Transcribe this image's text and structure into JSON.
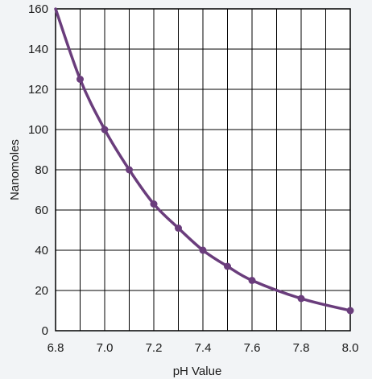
{
  "chart_data": {
    "type": "line",
    "xlabel": "pH Value",
    "ylabel": "Nanomoles",
    "xlim": [
      6.8,
      8.0
    ],
    "ylim": [
      0,
      160
    ],
    "x_ticks": [
      "6.8",
      "7.0",
      "7.2",
      "7.4",
      "7.6",
      "7.8",
      "8.0"
    ],
    "y_ticks": [
      "0",
      "20",
      "40",
      "60",
      "80",
      "100",
      "120",
      "140",
      "160"
    ],
    "grid": true,
    "line_color": "#6a3d7c",
    "series": [
      {
        "x": [
          6.8,
          6.9,
          7.0,
          7.1,
          7.2,
          7.3,
          7.4,
          7.5,
          7.6,
          7.8,
          8.0
        ],
        "y": [
          160,
          125,
          100,
          80,
          63,
          51,
          40,
          32,
          25,
          16,
          10
        ],
        "markers": [
          false,
          true,
          true,
          true,
          true,
          true,
          true,
          true,
          true,
          true,
          true
        ]
      }
    ]
  }
}
